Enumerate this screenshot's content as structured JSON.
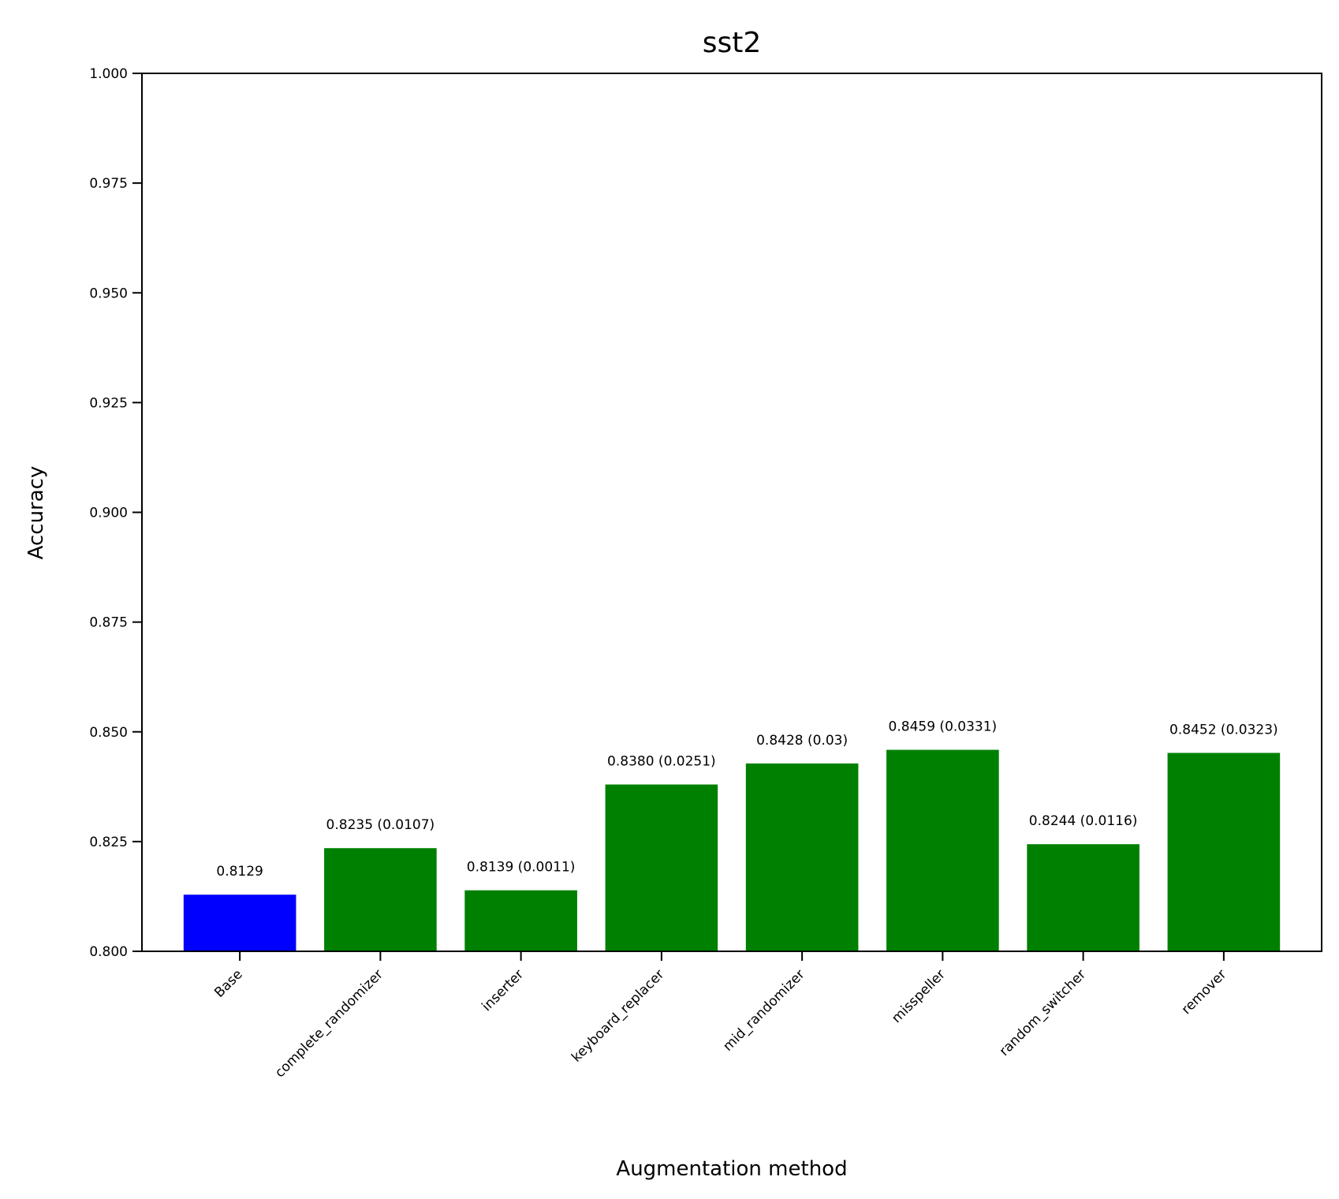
{
  "chart_data": {
    "type": "bar",
    "title": "sst2",
    "xlabel": "Augmentation method",
    "ylabel": "Accuracy",
    "ylim": [
      0.8,
      1.0
    ],
    "yticks": [
      "0.800",
      "0.825",
      "0.850",
      "0.875",
      "0.900",
      "0.925",
      "0.950",
      "0.975",
      "1.000"
    ],
    "categories": [
      "Base",
      "complete_randomizer",
      "inserter",
      "keyboard_replacer",
      "mid_randomizer",
      "misspeller",
      "random_switcher",
      "remover"
    ],
    "values": [
      0.8129,
      0.8235,
      0.8139,
      0.838,
      0.8428,
      0.8459,
      0.8244,
      0.8452
    ],
    "labels": [
      "0.8129",
      "0.8235 (0.0107)",
      "0.8139 (0.0011)",
      "0.8380 (0.0251)",
      "0.8428 (0.03)",
      "0.8459 (0.0331)",
      "0.8244 (0.0116)",
      "0.8452 (0.0323)"
    ],
    "colors": [
      "#0000ff",
      "#008000",
      "#008000",
      "#008000",
      "#008000",
      "#008000",
      "#008000",
      "#008000"
    ],
    "grid": false,
    "legend": "none"
  }
}
